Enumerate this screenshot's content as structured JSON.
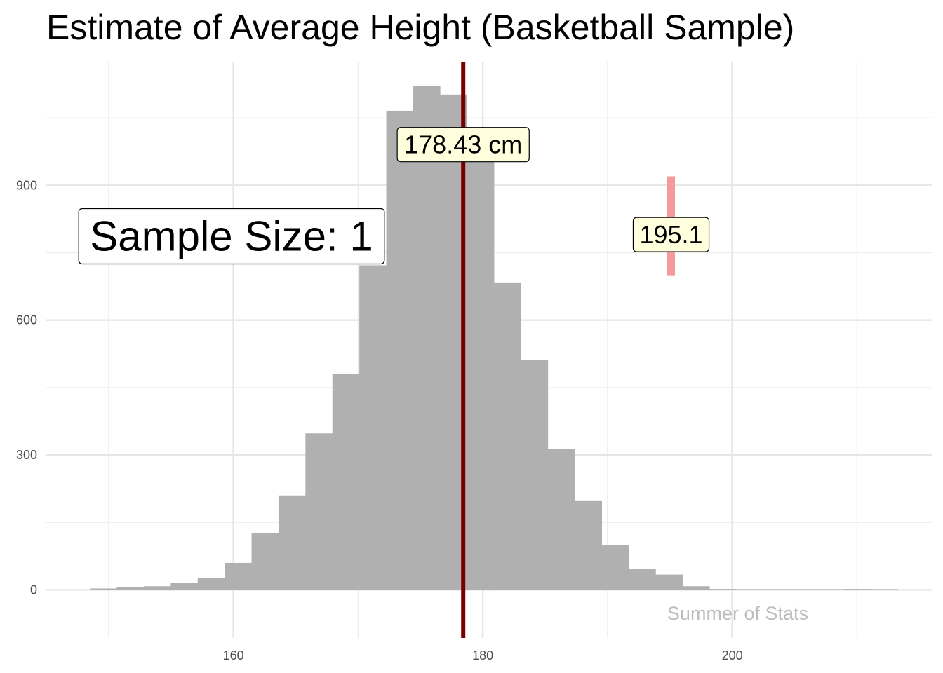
{
  "chart_data": {
    "type": "bar",
    "title": "Estimate of Average Height (Basketball Sample)",
    "xlabel": "",
    "ylabel": "",
    "xlim": [
      145,
      216
    ],
    "ylim": [
      -107,
      1175
    ],
    "x_ticks": [
      160,
      180,
      200
    ],
    "y_ticks": [
      0,
      300,
      600,
      900
    ],
    "x_ticks_minor": [
      150,
      170,
      190,
      210
    ],
    "y_ticks_minor": [
      150,
      450,
      750,
      1050
    ],
    "grid": true,
    "bin_width": 2.16,
    "bin_starts": [
      148.5,
      150.66,
      152.82,
      154.98,
      157.14,
      159.3,
      161.46,
      163.62,
      165.78,
      167.94,
      170.1,
      172.26,
      174.42,
      176.58,
      178.74,
      180.9,
      183.06,
      185.22,
      187.38,
      189.54,
      191.7,
      193.86,
      196.02,
      198.18,
      200.34,
      202.5,
      204.66,
      206.82,
      208.98,
      211.14
    ],
    "counts": [
      3,
      6,
      8,
      16,
      27,
      60,
      127,
      210,
      348,
      481,
      722,
      1066,
      1122,
      1102,
      952,
      684,
      512,
      313,
      199,
      100,
      46,
      34,
      8,
      2,
      0,
      0,
      0,
      0,
      2,
      0
    ],
    "bar_color": "#b0b0b0",
    "mean_line": {
      "x": 178.43,
      "color": "#7a0000",
      "label": "178.43 cm",
      "label_y": 1000
    },
    "sample_marker": {
      "x": 195.1,
      "y_min": 700,
      "y_max": 920,
      "color": "#f4999c",
      "label": "195.1",
      "label_y": 795
    },
    "sample_size_label": "Sample Size:  1",
    "label_fill": "#ffffdd",
    "caption": "Summer of Stats"
  }
}
